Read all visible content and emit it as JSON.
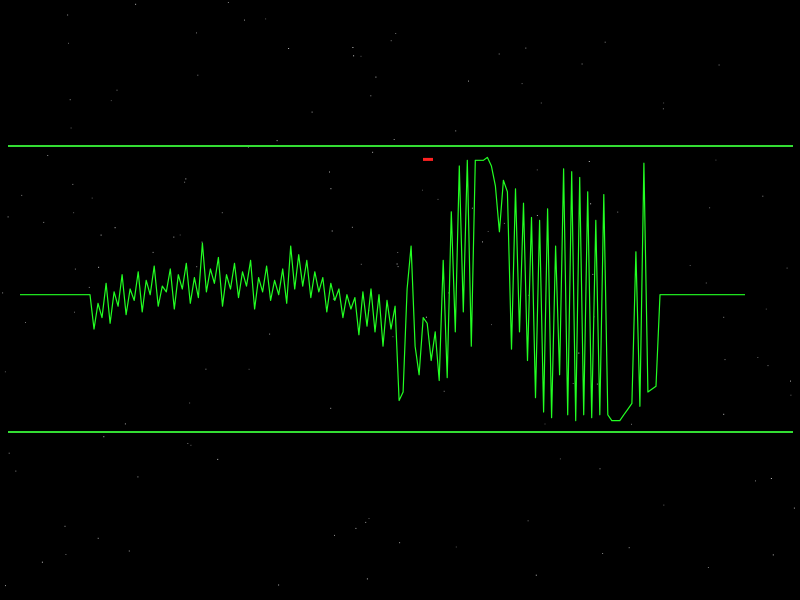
{
  "colors": {
    "background": "#000000",
    "trace": "#22ff22",
    "boundary": "#33dd33",
    "marker": "#ff2222",
    "stars": "#c8c8c8"
  },
  "scope": {
    "baseline_level": 0.48,
    "upper_boundary_level": 1.0,
    "lower_boundary_level": 0.0,
    "marker_level": 0.955,
    "samples": [
      0.48,
      0.36,
      0.45,
      0.4,
      0.52,
      0.38,
      0.49,
      0.44,
      0.55,
      0.41,
      0.5,
      0.46,
      0.56,
      0.42,
      0.53,
      0.48,
      0.58,
      0.44,
      0.51,
      0.49,
      0.57,
      0.43,
      0.55,
      0.5,
      0.59,
      0.45,
      0.54,
      0.47,
      0.66,
      0.49,
      0.57,
      0.52,
      0.61,
      0.44,
      0.55,
      0.5,
      0.59,
      0.47,
      0.56,
      0.51,
      0.6,
      0.43,
      0.54,
      0.49,
      0.58,
      0.46,
      0.53,
      0.48,
      0.57,
      0.45,
      0.65,
      0.5,
      0.62,
      0.51,
      0.6,
      0.47,
      0.56,
      0.49,
      0.54,
      0.42,
      0.52,
      0.46,
      0.5,
      0.4,
      0.48,
      0.43,
      0.47,
      0.34,
      0.49,
      0.37,
      0.5,
      0.35,
      0.48,
      0.3,
      0.46,
      0.36,
      0.44,
      0.11,
      0.14,
      0.5,
      0.65,
      0.3,
      0.2,
      0.4,
      0.38,
      0.25,
      0.35,
      0.18,
      0.6,
      0.19,
      0.77,
      0.35,
      0.93,
      0.42,
      0.95,
      0.3,
      0.95,
      0.95,
      0.95,
      0.96,
      0.93,
      0.86,
      0.7,
      0.88,
      0.84,
      0.29,
      0.85,
      0.35,
      0.8,
      0.25,
      0.75,
      0.12,
      0.74,
      0.07,
      0.78,
      0.05,
      0.65,
      0.2,
      0.92,
      0.06,
      0.91,
      0.04,
      0.89,
      0.06,
      0.84,
      0.05,
      0.74,
      0.06,
      0.83,
      0.06,
      0.04,
      0.04,
      0.04,
      0.06,
      0.08,
      0.1,
      0.63,
      0.09,
      0.94,
      0.14,
      0.15,
      0.16,
      0.48,
      0.48,
      0.48
    ]
  }
}
